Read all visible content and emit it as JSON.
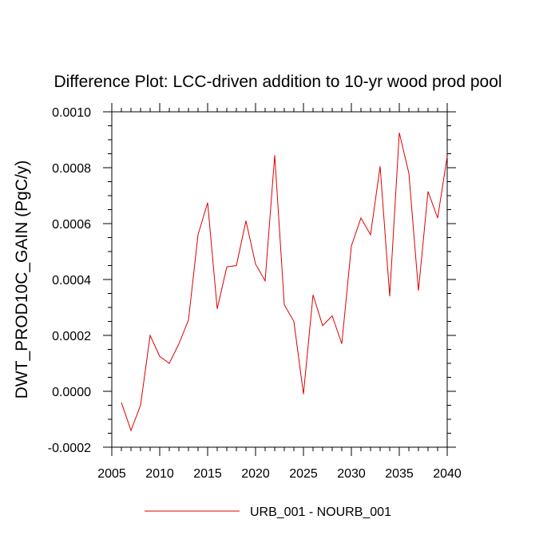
{
  "chart_data": {
    "type": "line",
    "title": "Difference Plot: LCC-driven addition to 10-yr wood prod pool",
    "xlabel": "",
    "ylabel": "DWT_PROD10C_GAIN  (PgC/y)",
    "xlim": [
      2005,
      2040
    ],
    "ylim": [
      -0.0002,
      0.001
    ],
    "x_ticks": [
      2005,
      2010,
      2015,
      2020,
      2025,
      2030,
      2035,
      2040
    ],
    "x_tick_labels": [
      "2005",
      "2010",
      "2015",
      "2020",
      "2025",
      "2030",
      "2035",
      "2040"
    ],
    "y_ticks": [
      -0.0002,
      0.0,
      0.0002,
      0.0004,
      0.0006,
      0.0008,
      0.001
    ],
    "y_tick_labels": [
      "-0.0002",
      "0.0000",
      "0.0002",
      "0.0004",
      "0.0006",
      "0.0008",
      "0.0010"
    ],
    "legend_position": "bottom-center",
    "series": [
      {
        "name": "URB_001 - NOURB_001",
        "color": "#dd0000",
        "x": [
          2006,
          2007,
          2008,
          2009,
          2010,
          2011,
          2012,
          2013,
          2014,
          2015,
          2016,
          2017,
          2018,
          2019,
          2020,
          2021,
          2022,
          2023,
          2024,
          2025,
          2026,
          2027,
          2028,
          2029,
          2030,
          2031,
          2032,
          2033,
          2034,
          2035,
          2036,
          2037,
          2038,
          2039,
          2040
        ],
        "values": [
          -4e-05,
          -0.00014,
          -5e-05,
          0.0002,
          0.000125,
          0.0001,
          0.00017,
          0.000255,
          0.00056,
          0.000675,
          0.000295,
          0.000445,
          0.00045,
          0.00061,
          0.000455,
          0.000395,
          0.000845,
          0.00031,
          0.00025,
          -1e-05,
          0.000345,
          0.000235,
          0.00027,
          0.00017,
          0.00052,
          0.00062,
          0.00056,
          0.000805,
          0.00034,
          0.000925,
          0.00078,
          0.00036,
          0.000715,
          0.00062,
          0.00084
        ]
      }
    ]
  }
}
